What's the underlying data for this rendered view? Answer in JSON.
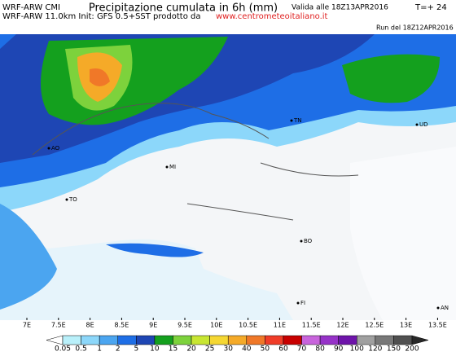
{
  "header": {
    "model": "WRF-ARW CMI",
    "title": "Precipitazione cumulata in 6h (mm)",
    "valid": "Valida alle 18Z13APR2016",
    "step": "T=+ 24",
    "info": "WRF-ARW 11.0km Init: GFS 0.5+SST prodotto da",
    "website": "www.centrometeoitaliano.it",
    "run": "Run del 18Z12APR2016"
  },
  "map": {
    "longitudes": [
      "7E",
      "7.5E",
      "8E",
      "8.5E",
      "9E",
      "9.5E",
      "10E",
      "10.5E",
      "11E",
      "11.5E",
      "12E",
      "12.5E",
      "13E",
      "13.5E"
    ],
    "cities": [
      "AO",
      "TO",
      "MI",
      "TN",
      "UD",
      "BO",
      "FI",
      "AN"
    ]
  },
  "colorbar": {
    "labels": [
      "0.05",
      "0.5",
      "1",
      "2",
      "5",
      "10",
      "15",
      "20",
      "25",
      "30",
      "40",
      "50",
      "60",
      "70",
      "80",
      "90",
      "100",
      "120",
      "150",
      "200"
    ],
    "colors": [
      "#ffffff",
      "#b9f0fa",
      "#8cd7fa",
      "#4ba5f0",
      "#1e6ee6",
      "#1e46b4",
      "#14a01e",
      "#7dd23c",
      "#c8e632",
      "#f5d732",
      "#f5aa28",
      "#f07828",
      "#f03c28",
      "#c80000",
      "#c864dc",
      "#9632c8",
      "#6e14aa",
      "#a0a0a0",
      "#787878",
      "#505050",
      "#282828"
    ]
  }
}
